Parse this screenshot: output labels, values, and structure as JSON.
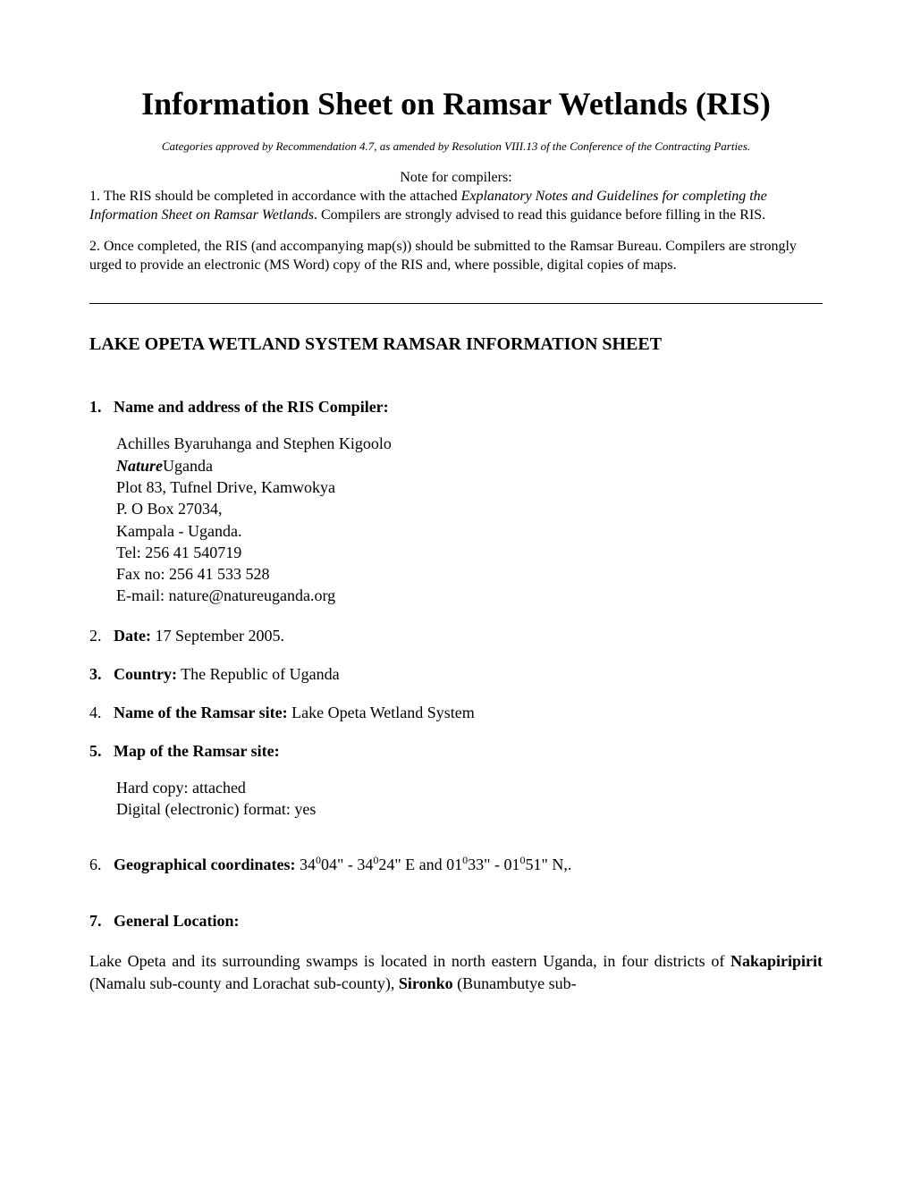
{
  "title": "Information Sheet on Ramsar Wetlands (RIS)",
  "subtitle": "Categories approved by Recommendation 4.7, as amended by Resolution VIII.13 of the Conference of the Contracting Parties.",
  "note": {
    "header": "Note for compilers:",
    "line1_prefix": "1. The RIS should be completed in accordance with the attached ",
    "line1_italic": "Explanatory Notes and Guidelines for completing the Information Sheet on Ramsar Wetlands",
    "line1_suffix": ". Compilers are strongly advised to read this guidance before filling in the RIS.",
    "line2": "2. Once completed, the RIS (and accompanying map(s)) should be submitted to the Ramsar Bureau. Compilers are strongly urged to provide an electronic (MS Word) copy of the RIS and, where possible, digital copies of maps."
  },
  "sheet_heading": "LAKE OPETA WETLAND SYSTEM RAMSAR INFORMATION SHEET",
  "s1": {
    "number": "1.",
    "label": "Name and address of the RIS Compiler:",
    "name": "Achilles Byaruhanga and Stephen Kigoolo",
    "org_bold": "Nature",
    "org_rest": "Uganda",
    "addr1": "Plot 83, Tufnel Drive, Kamwokya",
    "addr2": "P. O Box 27034,",
    "addr3": "Kampala - Uganda.",
    "tel": "Tel: 256 41 540719",
    "fax": "Fax no: 256 41 533 528",
    "email": "E-mail: nature@natureuganda.org"
  },
  "s2": {
    "number": "2.",
    "label": "Date:",
    "value": " 17 September 2005."
  },
  "s3": {
    "number": "3.",
    "label": "Country:",
    "value": " The Republic of Uganda"
  },
  "s4": {
    "number": "4.",
    "label": "Name of the Ramsar site:",
    "value": " Lake Opeta Wetland System"
  },
  "s5": {
    "number": "5.",
    "label": "Map of the Ramsar site:",
    "line1": "Hard copy: attached",
    "line2": "Digital (electronic) format: yes"
  },
  "s6": {
    "number": "6.",
    "label": "Geographical coordinates:",
    "v1": " 34",
    "sup1": "0",
    "v2": "04\" - 34",
    "sup2": "0",
    "v3": "24\" E  and 01",
    "sup3": "0",
    "v4": "33\" - 01",
    "sup4": "0",
    "v5": "51\" N,."
  },
  "s7": {
    "number": "7.",
    "label": "General Location:",
    "p1a": "Lake Opeta and its surrounding swamps is located in north eastern Uganda, in four districts of ",
    "p1b": "Nakapiripirit",
    "p1c": " (Namalu sub-county and Lorachat sub-county), ",
    "p1d": "Sironko",
    "p1e": " (Bunambutye sub-"
  }
}
